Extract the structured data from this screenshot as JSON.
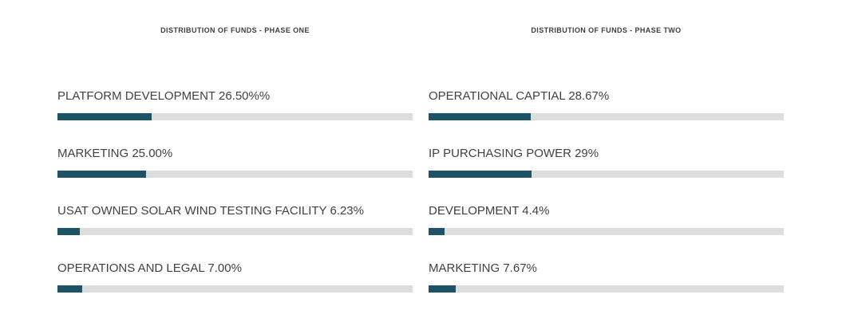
{
  "colors": {
    "bar_fill": "#1e5266",
    "bar_track": "#dddddd",
    "label_text": "#414141",
    "title_text": "#3e3e3e",
    "background": "#ffffff"
  },
  "chart_data": [
    {
      "type": "bar",
      "orientation": "horizontal",
      "title": "DISTRIBUTION OF FUNDS - PHASE ONE",
      "max": 100,
      "legend_position": "none",
      "grid": false,
      "items": [
        {
          "label": "PLATFORM DEVELOPMENT 26.50%%",
          "value": 26.5
        },
        {
          "label": "MARKETING 25.00%",
          "value": 25.0
        },
        {
          "label": "USAT OWNED SOLAR WIND TESTING FACILITY 6.23%",
          "value": 6.23
        },
        {
          "label": "OPERATIONS AND LEGAL 7.00%",
          "value": 7.0
        }
      ]
    },
    {
      "type": "bar",
      "orientation": "horizontal",
      "title": "DISTRIBUTION OF FUNDS - PHASE TWO",
      "max": 100,
      "legend_position": "none",
      "grid": false,
      "items": [
        {
          "label": "OPERATIONAL CAPTIAL 28.67%",
          "value": 28.67
        },
        {
          "label": "IP PURCHASING POWER 29%",
          "value": 29
        },
        {
          "label": "DEVELOPMENT 4.4%",
          "value": 4.4
        },
        {
          "label": "MARKETING 7.67%",
          "value": 7.67
        }
      ]
    }
  ]
}
